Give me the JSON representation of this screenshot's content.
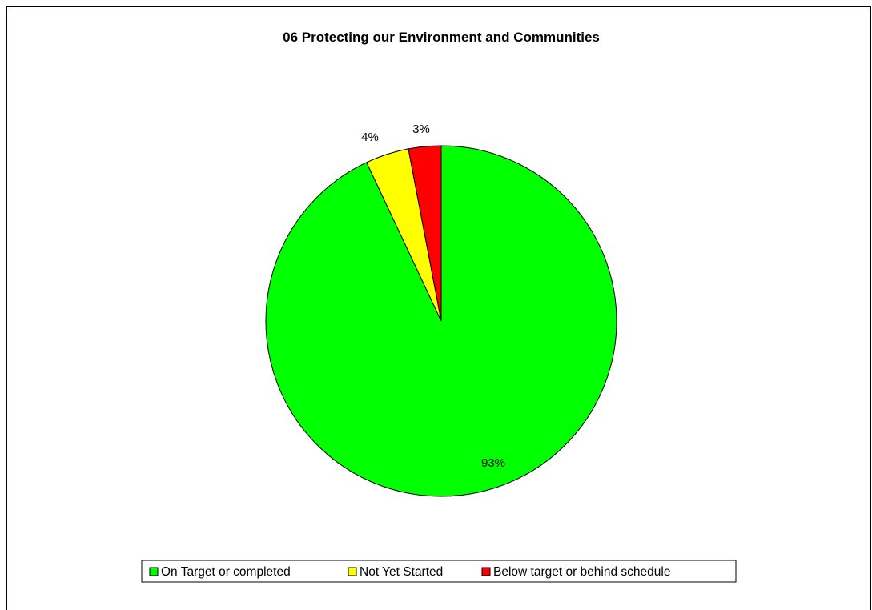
{
  "chart_data": {
    "type": "pie",
    "title": "06 Protecting our Environment and Communities",
    "slices": [
      {
        "label": "On Target or completed",
        "value": 93,
        "display": "93%",
        "color": "#00ff00"
      },
      {
        "label": "Not Yet Started",
        "value": 4,
        "display": "4%",
        "color": "#ffff00"
      },
      {
        "label": "Below target or behind schedule",
        "value": 3,
        "display": "3%",
        "color": "#ff0000"
      }
    ],
    "legend_position": "bottom"
  }
}
